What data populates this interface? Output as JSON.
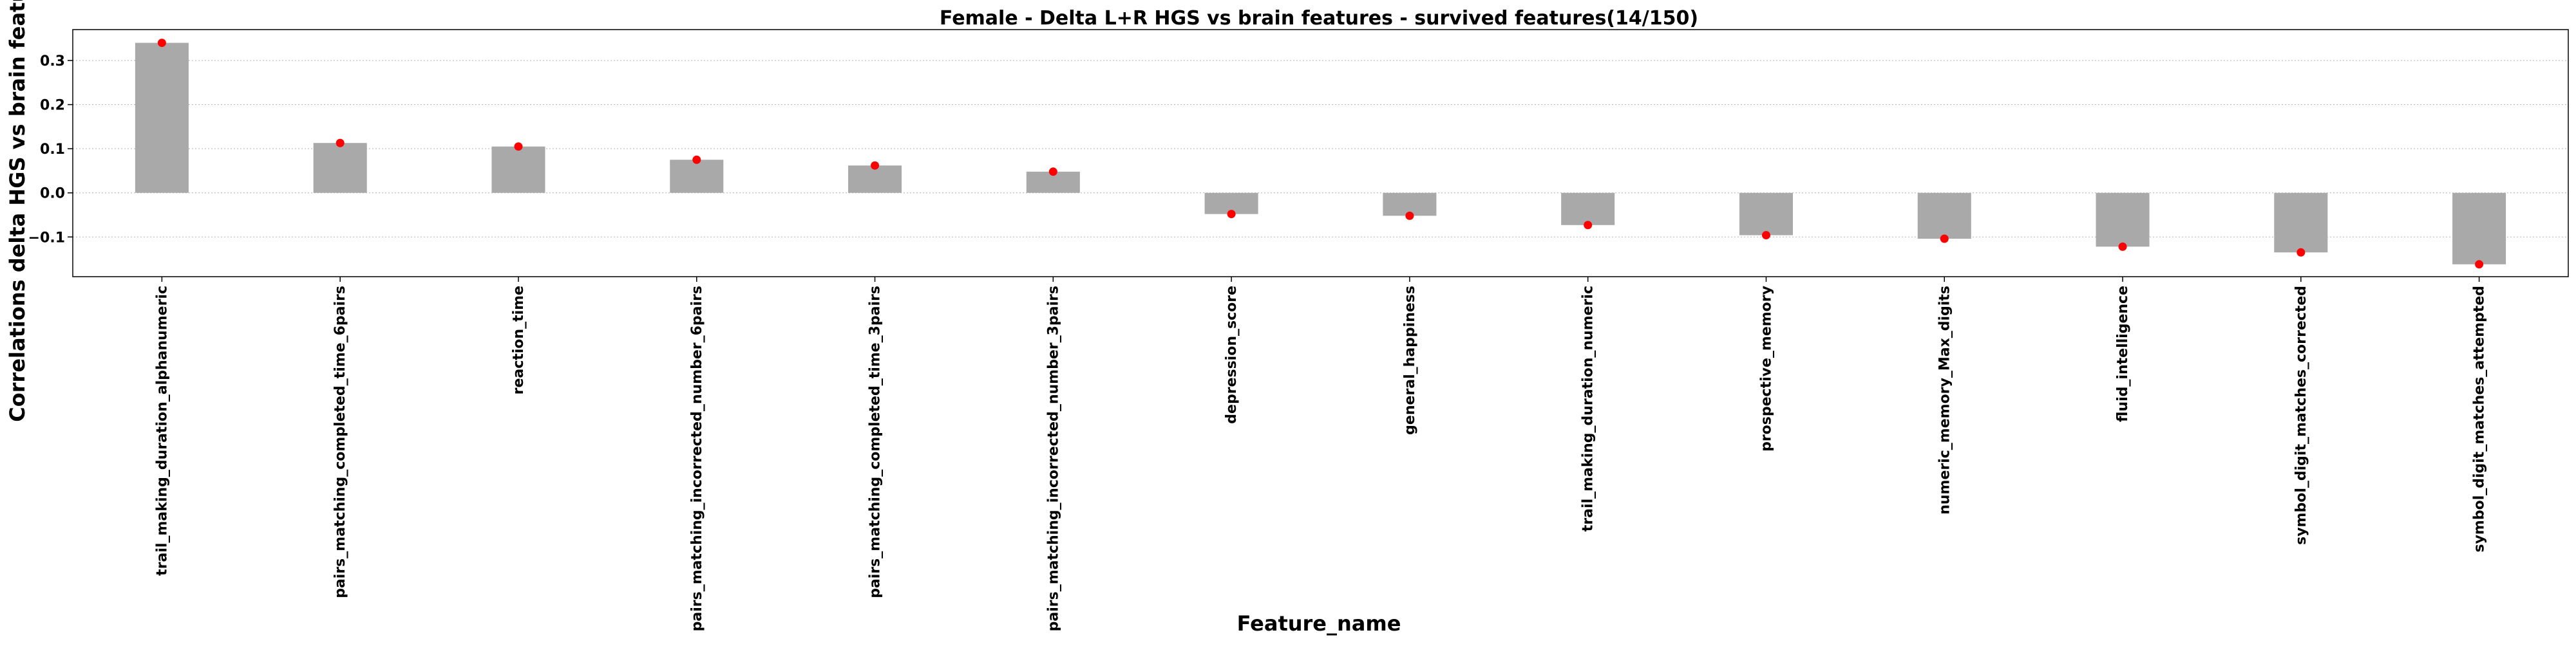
{
  "chart_data": {
    "type": "bar",
    "title": "Female - Delta L+R HGS vs brain features - survived features(14/150)",
    "xlabel": "Feature_name",
    "ylabel": "Correlations delta HGS vs brain features",
    "ylim": [
      -0.19,
      0.37
    ],
    "yticks": [
      -0.1,
      0.0,
      0.1,
      0.2,
      0.3
    ],
    "ytick_labels": [
      "−0.1",
      "0.0",
      "0.1",
      "0.2",
      "0.3"
    ],
    "grid": "horizontal dotted",
    "categories": [
      "trail_making_duration_alphanumeric",
      "pairs_matching_completed_time_6pairs",
      "reaction_time",
      "pairs_matching_incorrected_number_6pairs",
      "pairs_matching_completed_time_3pairs",
      "pairs_matching_incorrected_number_3pairs",
      "depression_score",
      "general_happiness",
      "trail_making_duration_numeric",
      "prospective_memory",
      "numeric_memory_Max_digits",
      "fluid_intelligence",
      "symbol_digit_matches_corrected",
      "symbol_digit_matches_attempted"
    ],
    "series": [
      {
        "type": "bar",
        "color": "#a9a9a9",
        "values": [
          0.34,
          0.113,
          0.105,
          0.075,
          0.062,
          0.048,
          -0.048,
          -0.052,
          -0.073,
          -0.096,
          -0.104,
          -0.122,
          -0.135,
          -0.162
        ]
      },
      {
        "type": "scatter",
        "color": "#ff0000",
        "values": [
          0.34,
          0.113,
          0.105,
          0.075,
          0.062,
          0.048,
          -0.048,
          -0.052,
          -0.073,
          -0.096,
          -0.104,
          -0.122,
          -0.135,
          -0.162
        ]
      }
    ]
  }
}
